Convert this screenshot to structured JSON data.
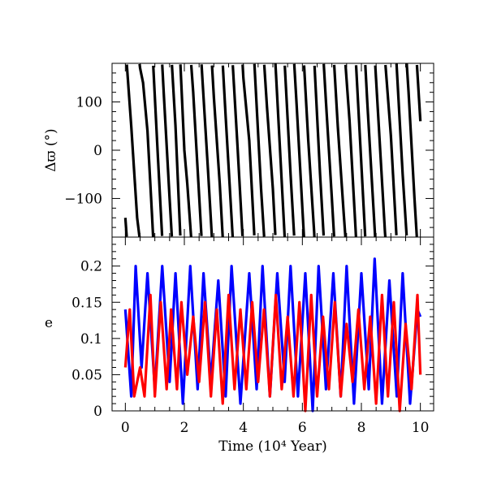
{
  "chart_data": [
    {
      "type": "line",
      "panel": "top",
      "title": "",
      "xlabel": "",
      "ylabel": "Δϖ (°)",
      "xlim": [
        -0.45,
        10.45
      ],
      "ylim": [
        -180,
        180
      ],
      "xticks": [
        0,
        2,
        4,
        6,
        8,
        10
      ],
      "yticks": [
        -100,
        0,
        100
      ],
      "ytick_labels": [
        "−100",
        "0",
        "100"
      ],
      "grid": false,
      "series": [
        {
          "color": "#000000",
          "wrap": [
            -180,
            180
          ],
          "x": [
            0,
            0.2,
            0.4,
            0.5,
            0.6,
            0.75,
            0.9,
            1.1,
            1.3,
            1.5,
            1.7,
            1.85,
            2.0,
            2.1,
            2.3,
            2.45,
            2.6,
            2.8,
            3.0,
            3.2,
            3.4,
            3.6,
            3.8,
            4.0,
            4.2,
            4.4,
            4.6,
            4.8,
            5.0,
            5.2,
            5.4,
            5.6,
            5.8,
            6.0,
            6.2,
            6.4,
            6.6,
            6.8,
            7.0,
            7.2,
            7.4,
            7.6,
            7.8,
            8.0,
            8.2,
            8.4,
            8.6,
            8.8,
            9.0,
            9.2,
            9.4,
            9.6,
            9.8,
            10.0
          ],
          "unwrapped": [
            -140,
            -310,
            -500,
            -550,
            -580,
            -680,
            -850,
            -1090,
            -1320,
            -1540,
            -1750,
            -1960,
            -2160,
            -2230,
            -2400,
            -2560,
            -2720,
            -2920,
            -3130,
            -3310,
            -3530,
            -3740,
            -3950,
            -4170,
            -4300,
            -4530,
            -4760,
            -4950,
            -5120,
            -5350,
            -5580,
            -5810,
            -6020,
            -6240,
            -6460,
            -6650,
            -6890,
            -7100,
            -7300,
            -7510,
            -7690,
            -7860,
            -8080,
            -8310,
            -8540,
            -8750,
            -8960,
            -9170,
            -9330,
            -9550,
            -9770,
            -9960,
            -10180,
            -10380
          ]
        }
      ]
    },
    {
      "type": "line",
      "panel": "bottom",
      "title": "",
      "xlabel": "Time (10⁴ Year)",
      "ylabel": "e",
      "xlim": [
        -0.45,
        10.45
      ],
      "ylim": [
        0,
        0.24
      ],
      "xticks": [
        0,
        2,
        4,
        6,
        8,
        10
      ],
      "yticks": [
        0,
        0.05,
        0.1,
        0.15,
        0.2
      ],
      "ytick_labels": [
        "0",
        "0.05",
        "0.1",
        "0.15",
        "0.2"
      ],
      "grid": false,
      "series": [
        {
          "color": "#0000ff",
          "x": [
            0,
            0.2,
            0.35,
            0.55,
            0.75,
            1.0,
            1.25,
            1.5,
            1.7,
            1.95,
            2.2,
            2.45,
            2.65,
            2.9,
            3.15,
            3.4,
            3.6,
            3.9,
            4.2,
            4.45,
            4.65,
            4.9,
            5.15,
            5.4,
            5.6,
            5.85,
            6.1,
            6.35,
            6.55,
            6.8,
            7.05,
            7.3,
            7.5,
            7.75,
            8.0,
            8.25,
            8.45,
            8.7,
            8.95,
            9.2,
            9.4,
            9.65,
            9.9,
            10.0
          ],
          "values": [
            0.14,
            0.02,
            0.2,
            0.06,
            0.19,
            0.03,
            0.2,
            0.04,
            0.19,
            0.01,
            0.2,
            0.03,
            0.19,
            0.04,
            0.18,
            0.02,
            0.2,
            0.01,
            0.19,
            0.03,
            0.2,
            0.02,
            0.19,
            0.04,
            0.2,
            0.02,
            0.19,
            0.0,
            0.2,
            0.03,
            0.19,
            0.02,
            0.2,
            0.01,
            0.19,
            0.03,
            0.21,
            0.01,
            0.18,
            0.02,
            0.19,
            0.01,
            0.14,
            0.13
          ]
        },
        {
          "color": "#ff0000",
          "x": [
            0,
            0.15,
            0.3,
            0.5,
            0.65,
            0.85,
            1.0,
            1.2,
            1.4,
            1.55,
            1.75,
            1.9,
            2.1,
            2.3,
            2.5,
            2.7,
            2.9,
            3.1,
            3.3,
            3.5,
            3.7,
            3.9,
            4.1,
            4.3,
            4.5,
            4.7,
            4.9,
            5.1,
            5.3,
            5.5,
            5.7,
            5.9,
            6.1,
            6.3,
            6.5,
            6.7,
            6.9,
            7.1,
            7.3,
            7.5,
            7.7,
            7.9,
            8.1,
            8.3,
            8.5,
            8.7,
            8.9,
            9.1,
            9.3,
            9.5,
            9.7,
            9.9,
            10.0
          ],
          "values": [
            0.06,
            0.14,
            0.02,
            0.06,
            0.02,
            0.16,
            0.02,
            0.15,
            0.03,
            0.14,
            0.03,
            0.15,
            0.05,
            0.13,
            0.04,
            0.15,
            0.02,
            0.14,
            0.01,
            0.16,
            0.03,
            0.14,
            0.03,
            0.15,
            0.04,
            0.14,
            0.02,
            0.16,
            0.03,
            0.13,
            0.02,
            0.15,
            0.0,
            0.16,
            0.02,
            0.13,
            0.03,
            0.15,
            0.02,
            0.12,
            0.04,
            0.14,
            0.03,
            0.13,
            0.01,
            0.16,
            0.02,
            0.15,
            0.0,
            0.12,
            0.03,
            0.16,
            0.05
          ]
        }
      ]
    }
  ]
}
